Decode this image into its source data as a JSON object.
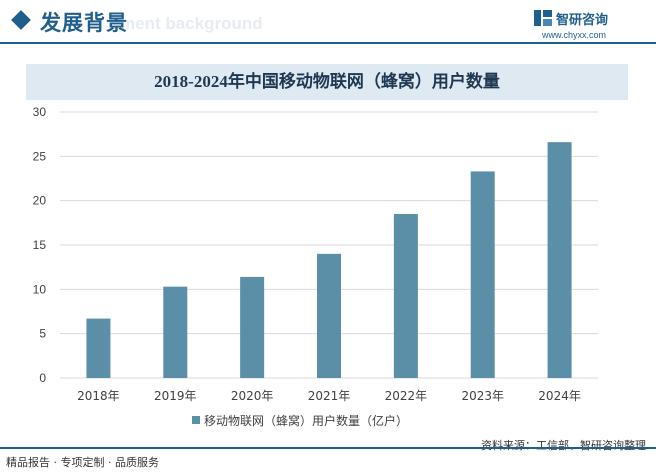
{
  "header": {
    "title": "发展背景",
    "watermark": "ment background",
    "brand_name": "智研咨询",
    "brand_url": "www.chyxx.com"
  },
  "colors": {
    "bar": "#5b8fa8",
    "accent": "#1f5f8e",
    "title_bg": "#dfe9f1",
    "grid": "#d9d9d9"
  },
  "chart_data": {
    "type": "bar",
    "title": "2018-2024年中国移动物联网（蜂窝）用户数量",
    "categories": [
      "2018年",
      "2019年",
      "2020年",
      "2021年",
      "2022年",
      "2023年",
      "2024年"
    ],
    "series": [
      {
        "name": "移动物联网（蜂窝）用户数量（亿户）",
        "values": [
          6.7,
          10.3,
          11.4,
          14.0,
          18.5,
          23.3,
          26.6
        ]
      }
    ],
    "ylim": [
      0,
      30
    ],
    "yticks": [
      0,
      5,
      10,
      15,
      20,
      25,
      30
    ],
    "grid": true,
    "legend": "bottom"
  },
  "footer": {
    "left": "精品报告 · 专项定制 · 品质服务",
    "source": "资料来源：工信部、智研咨询整理"
  }
}
